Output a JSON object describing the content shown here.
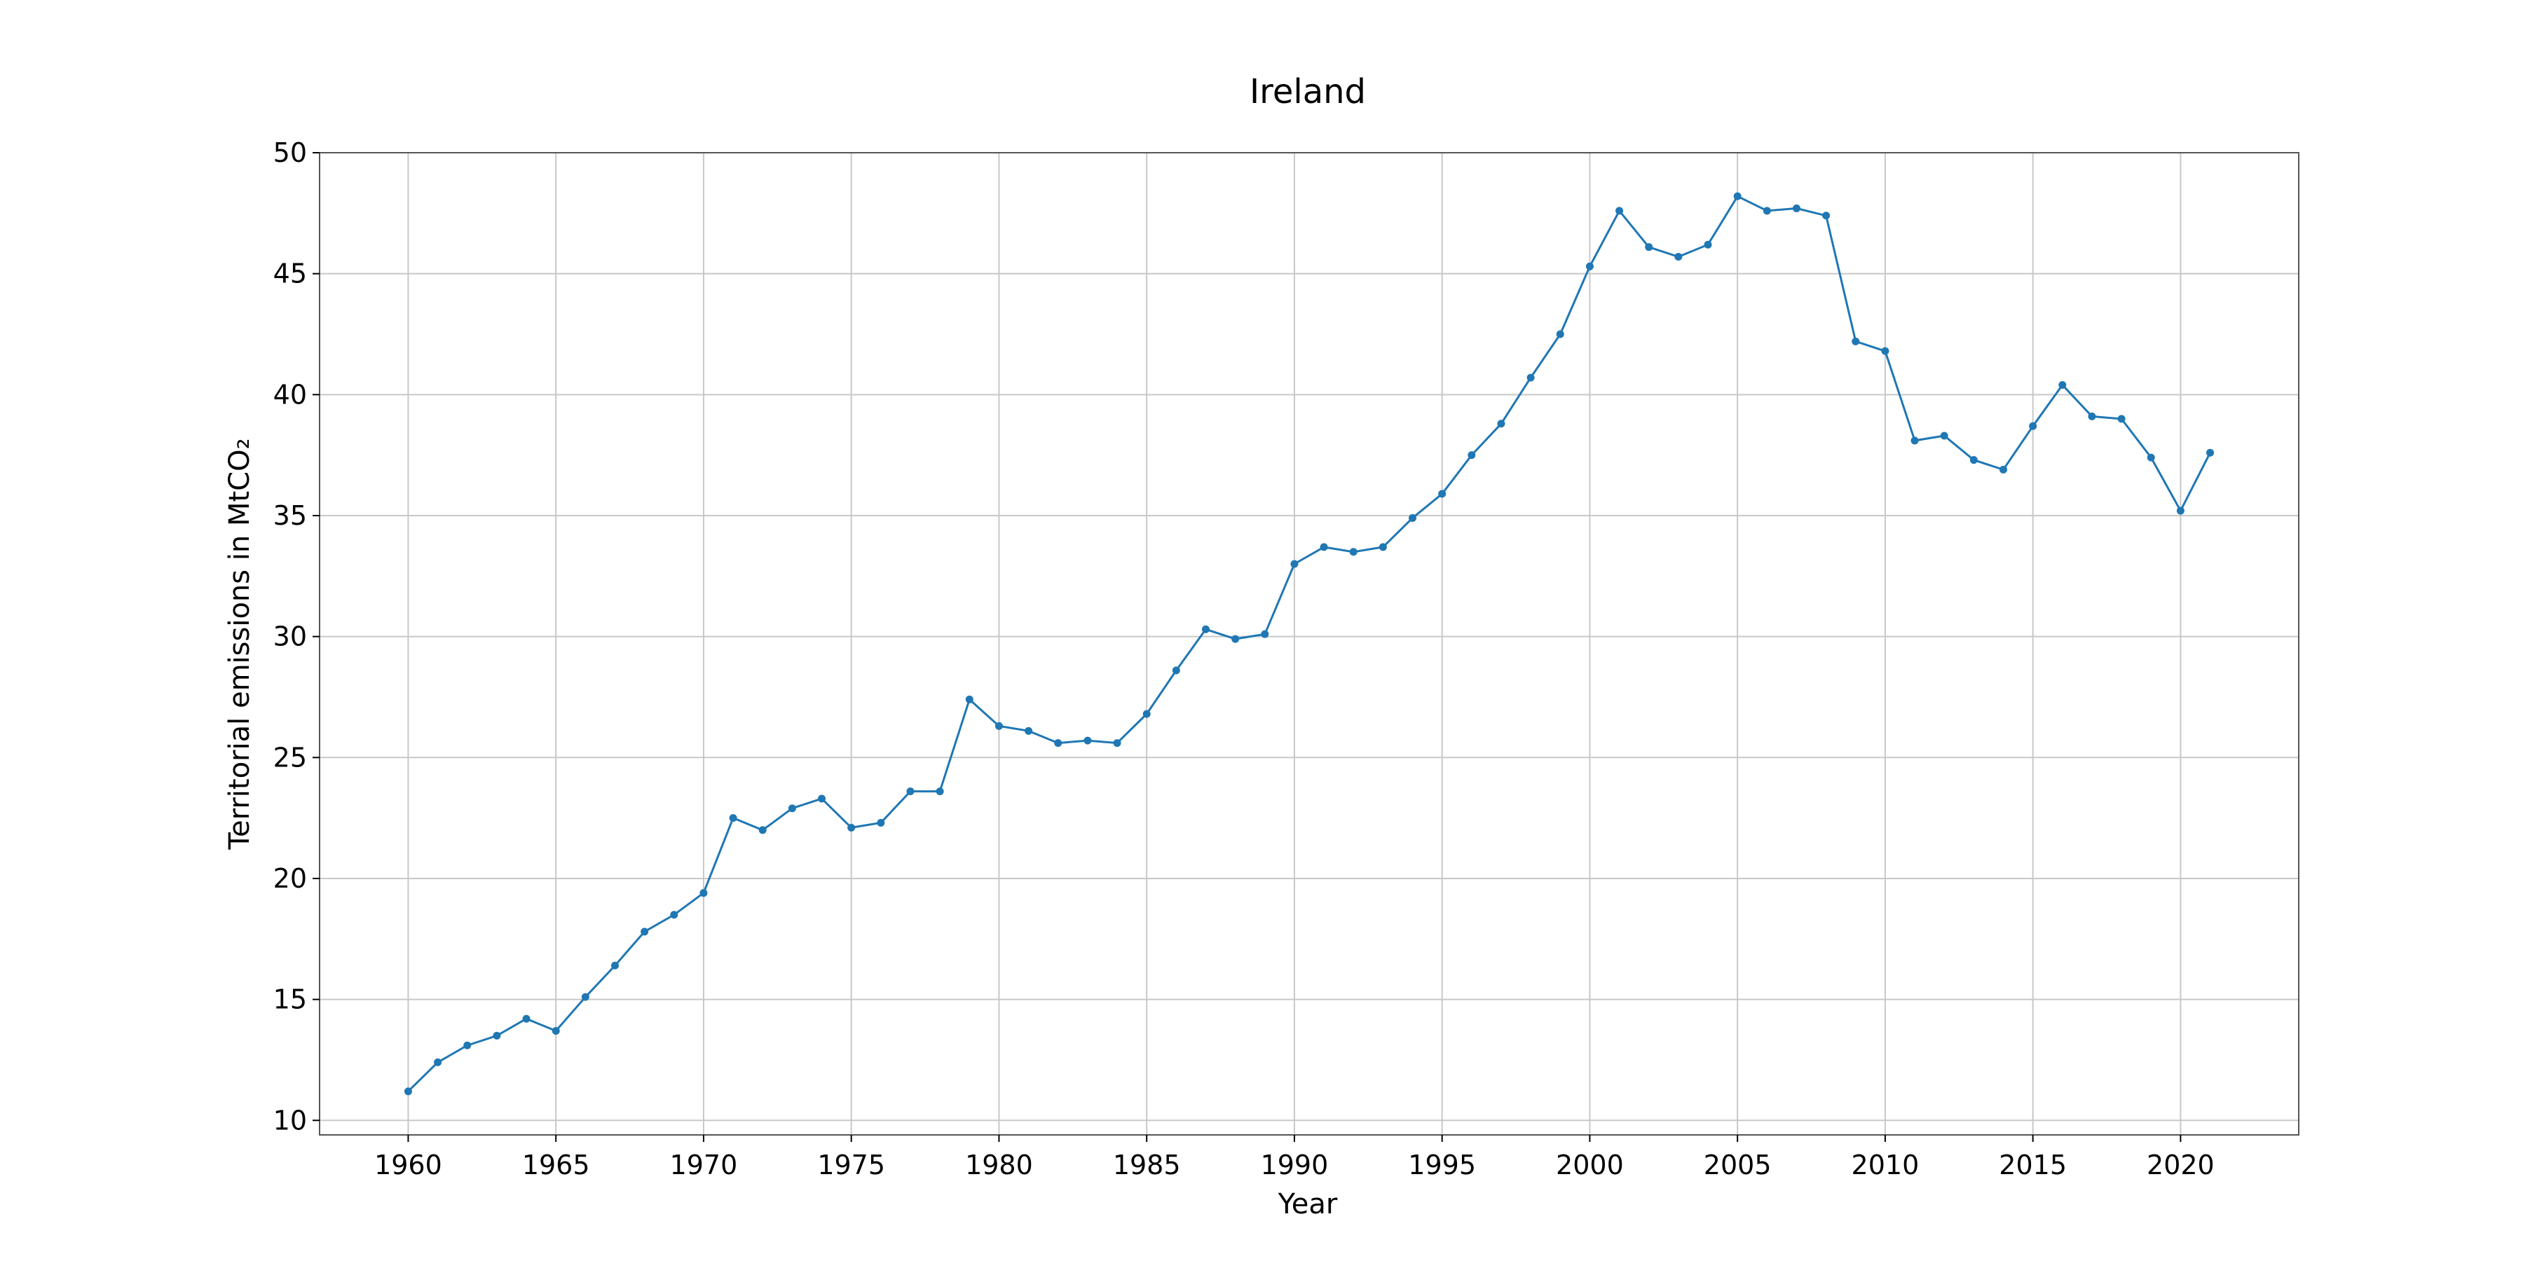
{
  "chart_data": {
    "type": "line",
    "title": "Ireland",
    "xlabel": "Year",
    "ylabel": "Territorial emissions in MtCO₂",
    "xlim": [
      1957,
      2024
    ],
    "ylim": [
      9.4,
      50
    ],
    "xticks": [
      1960,
      1965,
      1970,
      1975,
      1980,
      1985,
      1990,
      1995,
      2000,
      2005,
      2010,
      2015,
      2020
    ],
    "yticks": [
      10,
      15,
      20,
      25,
      30,
      35,
      40,
      45,
      50
    ],
    "grid": true,
    "legend": "none",
    "series": [
      {
        "color": "#1f77b4",
        "x": [
          1960,
          1961,
          1962,
          1963,
          1964,
          1965,
          1966,
          1967,
          1968,
          1969,
          1970,
          1971,
          1972,
          1973,
          1974,
          1975,
          1976,
          1977,
          1978,
          1979,
          1980,
          1981,
          1982,
          1983,
          1984,
          1985,
          1986,
          1987,
          1988,
          1989,
          1990,
          1991,
          1992,
          1993,
          1994,
          1995,
          1996,
          1997,
          1998,
          1999,
          2000,
          2001,
          2002,
          2003,
          2004,
          2005,
          2006,
          2007,
          2008,
          2009,
          2010,
          2011,
          2012,
          2013,
          2014,
          2015,
          2016,
          2017,
          2018,
          2019,
          2020,
          2021
        ],
        "values": [
          11.2,
          12.4,
          13.1,
          13.5,
          14.2,
          13.7,
          15.1,
          16.4,
          17.8,
          18.5,
          19.4,
          22.5,
          22.0,
          22.9,
          23.3,
          22.1,
          22.3,
          23.6,
          23.6,
          27.4,
          26.3,
          26.1,
          25.6,
          25.7,
          25.6,
          26.8,
          28.6,
          30.3,
          29.9,
          30.1,
          33.0,
          33.7,
          33.5,
          33.7,
          34.9,
          35.9,
          37.5,
          38.8,
          40.7,
          42.5,
          45.3,
          47.6,
          46.1,
          45.7,
          46.2,
          48.2,
          47.6,
          47.7,
          47.4,
          42.2,
          41.8,
          38.1,
          38.3,
          37.3,
          36.9,
          38.7,
          40.4,
          39.1,
          39.0,
          37.4,
          35.2,
          37.6
        ]
      }
    ]
  }
}
